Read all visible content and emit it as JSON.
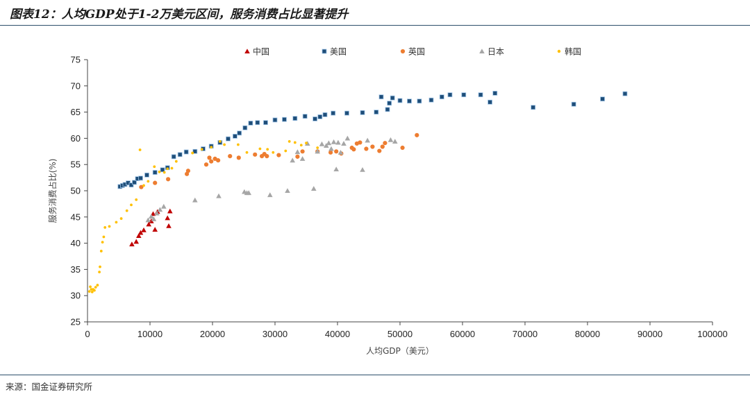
{
  "header": {
    "title": "图表12：人均GDP处于1-2万美元区间，服务消费占比显著提升"
  },
  "footer": {
    "source": "来源：国金证券研究所"
  },
  "chart_data": {
    "type": "scatter",
    "title": "图表12：人均GDP处于1-2万美元区间，服务消费占比显著提升",
    "xlabel": "人均GDP（美元）",
    "ylabel": "服务消费占比(%)",
    "xlim": [
      0,
      100000
    ],
    "ylim": [
      25,
      75
    ],
    "xticks": [
      "0",
      "10000",
      "20000",
      "30000",
      "40000",
      "50000",
      "60000",
      "70000",
      "80000",
      "90000",
      "100000"
    ],
    "yticks": [
      "25",
      "30",
      "35",
      "40",
      "45",
      "50",
      "55",
      "60",
      "65",
      "70",
      "75"
    ],
    "legend_position": "top",
    "series": [
      {
        "name": "中国",
        "color": "#c00000",
        "marker": "triangle",
        "x": [
          7100,
          7800,
          8200,
          8500,
          9000,
          9800,
          10200,
          10500,
          10800,
          11200,
          12800,
          13000,
          13200
        ],
        "y": [
          39.8,
          40.3,
          41.4,
          42.0,
          42.5,
          43.6,
          44.2,
          45.6,
          42.6,
          46.0,
          44.8,
          43.3,
          46.1
        ]
      },
      {
        "name": "美国",
        "color": "#1f4e79",
        "marker": "square",
        "x": [
          5200,
          5600,
          6000,
          6500,
          7000,
          7500,
          8000,
          8500,
          9500,
          10800,
          12000,
          12800,
          13800,
          14800,
          15800,
          17200,
          18500,
          19800,
          21200,
          22500,
          23600,
          24300,
          25200,
          26100,
          27200,
          28500,
          30000,
          31500,
          33200,
          34800,
          36400,
          37200,
          38000,
          39300,
          41500,
          44000,
          46200,
          47000,
          48000,
          48300,
          48800,
          50000,
          51500,
          53100,
          55000,
          56700,
          58000,
          60200,
          62900,
          64400,
          65200,
          71300,
          77800,
          82400,
          86000
        ],
        "y": [
          50.8,
          51.0,
          51.2,
          51.5,
          51.1,
          51.6,
          52.3,
          52.4,
          53.0,
          53.5,
          54.0,
          54.4,
          56.5,
          56.9,
          57.4,
          57.5,
          58.0,
          58.5,
          59.2,
          59.9,
          60.4,
          61.0,
          62.0,
          62.9,
          63.0,
          63.0,
          63.5,
          63.6,
          63.8,
          64.2,
          63.7,
          64.1,
          64.5,
          64.8,
          64.8,
          64.9,
          65.0,
          67.9,
          65.5,
          66.7,
          67.7,
          67.2,
          67.1,
          67.1,
          67.3,
          67.9,
          68.3,
          68.3,
          68.3,
          66.9,
          68.6,
          65.9,
          66.5,
          67.5,
          68.5
        ]
      },
      {
        "name": "英国",
        "color": "#ed7d31",
        "marker": "circle",
        "x": [
          8600,
          10800,
          12900,
          15900,
          16100,
          19000,
          19500,
          19800,
          20400,
          20900,
          22800,
          24200,
          26800,
          27900,
          28300,
          28700,
          30600,
          33600,
          34400,
          36800,
          38900,
          39800,
          40600,
          42300,
          42600,
          43100,
          43600,
          44600,
          45600,
          46700,
          47200,
          47600,
          50400,
          52700
        ],
        "y": [
          50.7,
          51.5,
          52.2,
          53.2,
          53.8,
          55.0,
          56.3,
          55.6,
          56.1,
          55.8,
          56.6,
          56.3,
          56.9,
          56.6,
          57.0,
          56.6,
          56.8,
          56.5,
          57.5,
          57.5,
          57.3,
          57.5,
          57.1,
          58.2,
          57.9,
          59.0,
          59.2,
          58.0,
          58.4,
          57.6,
          58.4,
          59.1,
          58.2,
          60.6
        ]
      },
      {
        "name": "日本",
        "color": "#a6a6a6",
        "marker": "triangle",
        "x": [
          9700,
          10200,
          10600,
          11100,
          11600,
          12200,
          17200,
          21000,
          25100,
          25500,
          25800,
          29200,
          32000,
          32800,
          33600,
          34400,
          35200,
          36200,
          36800,
          37500,
          38200,
          38600,
          39000,
          39400,
          39800,
          40100,
          40500,
          41000,
          41600,
          44000,
          44800,
          48500,
          49200
        ],
        "y": [
          44.4,
          45.1,
          44.6,
          45.7,
          46.4,
          47.0,
          48.2,
          49.0,
          49.8,
          49.6,
          49.6,
          49.2,
          50.0,
          55.8,
          57.4,
          56.1,
          59.0,
          50.4,
          57.5,
          58.9,
          58.6,
          59.1,
          58.0,
          59.3,
          54.1,
          59.2,
          57.3,
          59.0,
          60.0,
          54.0,
          59.6,
          59.7,
          59.4
        ]
      },
      {
        "name": "韩国",
        "color": "#ffc000",
        "marker": "dot",
        "x": [
          300,
          450,
          600,
          750,
          900,
          1100,
          1300,
          1600,
          1900,
          2000,
          2200,
          2400,
          2600,
          2800,
          3500,
          4600,
          5400,
          6300,
          7000,
          7800,
          8400,
          9000,
          9700,
          10700,
          11500,
          12300,
          12800,
          13500,
          14200,
          16800,
          18300,
          19800,
          21200,
          21900,
          24100,
          25500,
          27600,
          28800,
          29700,
          31700,
          32300,
          33200,
          34200,
          35000,
          36800
        ],
        "y": [
          30.8,
          31.7,
          31.2,
          30.7,
          31.2,
          31.0,
          31.6,
          32.0,
          34.5,
          35.5,
          38.5,
          40.2,
          41.2,
          43.0,
          43.2,
          44.0,
          44.7,
          46.2,
          47.3,
          48.3,
          57.8,
          51.0,
          51.8,
          54.6,
          53.6,
          53.5,
          54.2,
          54.3,
          55.6,
          57.2,
          57.9,
          58.3,
          59.4,
          58.8,
          58.8,
          57.3,
          58.0,
          57.9,
          57.3,
          57.6,
          59.4,
          59.2,
          58.7,
          59.1,
          58.2
        ]
      }
    ]
  }
}
